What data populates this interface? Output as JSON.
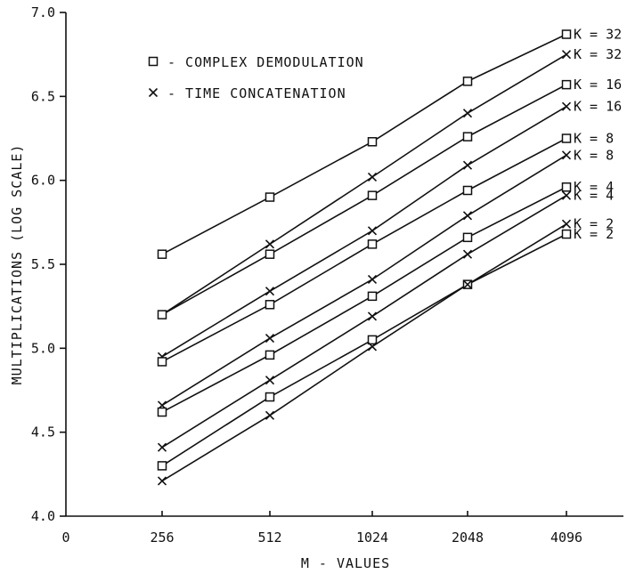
{
  "chart_data": {
    "type": "line",
    "title": "",
    "xlabel": "M - VALUES",
    "ylabel": "MULTIPLICATIONS (LOG SCALE)",
    "x_origin_label": "0",
    "categories": [
      "256",
      "512",
      "1024",
      "2048",
      "4096"
    ],
    "ylim": [
      4.0,
      7.0
    ],
    "yticks": [
      "4.0",
      "4.5",
      "5.0",
      "5.5",
      "6.0",
      "6.5",
      "7.0"
    ],
    "grid": false,
    "legend": {
      "placement": "top-left",
      "entries": [
        {
          "marker": "square",
          "label": "- COMPLEX DEMODULATION"
        },
        {
          "marker": "x",
          "label": "- TIME CONCATENATION"
        }
      ]
    },
    "series": [
      {
        "method": "complex-demodulation",
        "marker": "square",
        "label": "K = 32",
        "values": [
          5.56,
          5.9,
          6.23,
          6.59,
          6.87
        ]
      },
      {
        "method": "time-concatenation",
        "marker": "x",
        "label": "K = 32",
        "values": [
          5.2,
          5.62,
          6.02,
          6.4,
          6.75
        ]
      },
      {
        "method": "complex-demodulation",
        "marker": "square",
        "label": "K = 16",
        "values": [
          5.2,
          5.56,
          5.91,
          6.26,
          6.57
        ]
      },
      {
        "method": "time-concatenation",
        "marker": "x",
        "label": "K = 16",
        "values": [
          4.95,
          5.34,
          5.7,
          6.09,
          6.44
        ]
      },
      {
        "method": "complex-demodulation",
        "marker": "square",
        "label": "K = 8",
        "values": [
          4.92,
          5.26,
          5.62,
          5.94,
          6.25
        ]
      },
      {
        "method": "time-concatenation",
        "marker": "x",
        "label": "K = 8",
        "values": [
          4.66,
          5.06,
          5.41,
          5.79,
          6.15
        ]
      },
      {
        "method": "complex-demodulation",
        "marker": "square",
        "label": "K = 4",
        "values": [
          4.62,
          4.96,
          5.31,
          5.66,
          5.96
        ]
      },
      {
        "method": "time-concatenation",
        "marker": "x",
        "label": "K = 4",
        "values": [
          4.41,
          4.81,
          5.19,
          5.56,
          5.91
        ]
      },
      {
        "method": "complex-demodulation",
        "marker": "square",
        "label": "K = 2",
        "values": [
          4.3,
          4.71,
          5.05,
          5.38,
          5.68
        ]
      },
      {
        "method": "time-concatenation",
        "marker": "x",
        "label": "K = 2",
        "values": [
          4.21,
          4.6,
          5.01,
          5.38,
          5.74
        ]
      }
    ]
  }
}
